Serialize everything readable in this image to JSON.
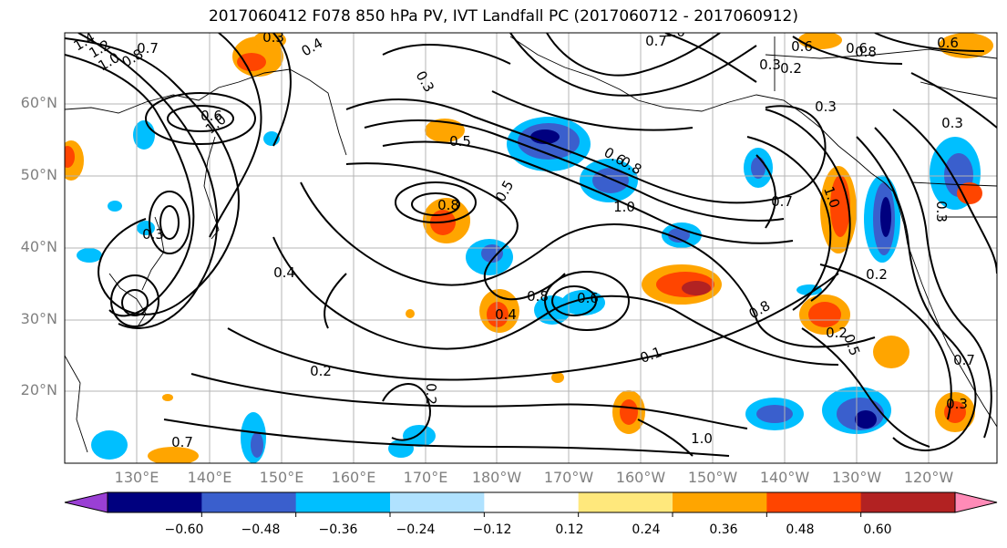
{
  "title": "2017060412 F078 850 hPa PV, IVT Landfall PC (2017060712 - 2017060912)",
  "lat_labels": [
    "60°N",
    "50°N",
    "40°N",
    "30°N",
    "20°N"
  ],
  "lon_labels": [
    "130°E",
    "140°E",
    "150°E",
    "160°E",
    "170°E",
    "180°W",
    "170°W",
    "160°W",
    "150°W",
    "140°W",
    "130°W",
    "120°W"
  ],
  "contour_labels": [
    "1.4",
    "1.2",
    "1.0",
    "0.8",
    "0.7",
    "0.4",
    "0.7",
    "1.0",
    "0.8",
    "0.6",
    "0.3",
    "0.5",
    "0.3",
    "0.2",
    "0.7",
    "0.6",
    "0.8",
    "1.0",
    "0.5",
    "0.6",
    "1.0",
    "0.3",
    "0.6",
    "0.3",
    "0.3",
    "0.3",
    "0.4",
    "0.2",
    "0.5",
    "0.7",
    "0.3",
    "0.8",
    "0.2",
    "0.2",
    "0.2",
    "0.1",
    "1.0",
    "0.7",
    "0.6",
    "0.4",
    "1.0",
    "0.6",
    "0.8",
    "0.8",
    "0.3"
  ],
  "colorbar": {
    "ticks": [
      "−0.60",
      "−0.48",
      "−0.36",
      "−0.24",
      "−0.12",
      "0.12",
      "0.24",
      "0.36",
      "0.48",
      "0.60"
    ],
    "colors": [
      "#9a3fd4",
      "#00007f",
      "#3a5fcd",
      "#00bfff",
      "#b0e2ff",
      "#ffffff",
      "#ffe87c",
      "#ffa500",
      "#ff4500",
      "#b22222",
      "#ff8bb7"
    ]
  },
  "colors": {
    "orange": "#ffa500",
    "red": "#ff4500",
    "darkred": "#b22222",
    "yellow": "#ffe87c",
    "lightblue": "#b0e2ff",
    "cyan": "#00bfff",
    "blue": "#3a5fcd",
    "navy": "#00007f"
  }
}
